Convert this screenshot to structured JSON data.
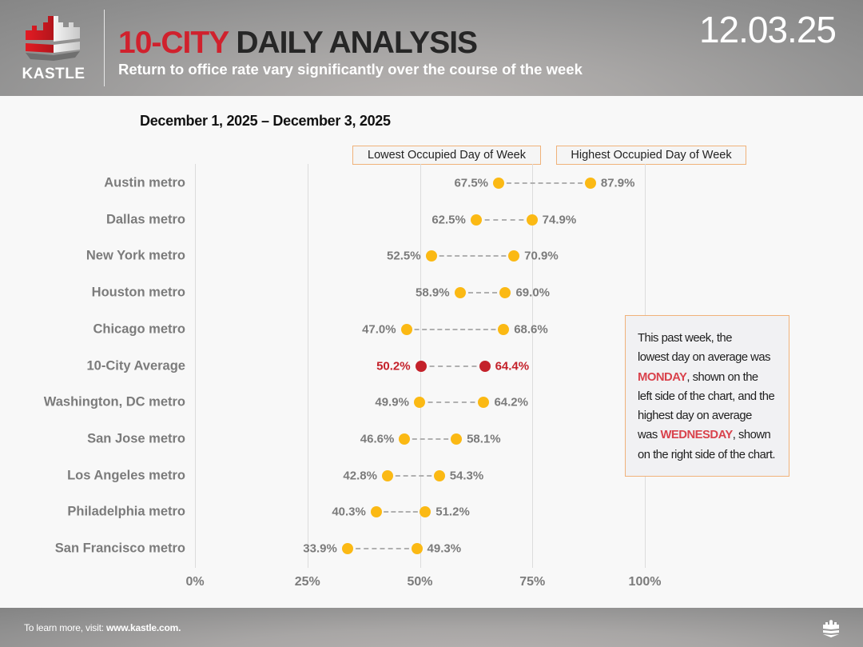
{
  "header": {
    "logo_text": "KASTLE",
    "title_accent": "10-CITY",
    "title_rest": "DAILY ANALYSIS",
    "subtitle": "Return to office rate vary significantly over the course of the week",
    "date_stamp": "12.03.25"
  },
  "date_range": "December 1, 2025 – December 3, 2025",
  "legend": {
    "low_label": "Lowest Occupied Day of Week",
    "high_label": "Highest Occupied Day of Week"
  },
  "callout": {
    "line1": "This past week, the",
    "line2": "lowest day on average was",
    "low_day": "MONDAY",
    "line3_rest": ", shown on the",
    "line4": "left side of the chart, and the",
    "line5": "highest day on average",
    "line6_pre": "was ",
    "high_day": "WEDNESDAY",
    "line6_rest": ", shown",
    "line7": "on the right side of the chart."
  },
  "footer": {
    "prefix": "To learn more, visit: ",
    "link": "www.kastle.com."
  },
  "colors": {
    "accent_red": "#d0212d",
    "dot_yellow": "#fbb914",
    "dot_red": "#c4212a",
    "label_red": "#c4212a",
    "label_gray": "#7b7b7b",
    "callout_border": "#f0b27a"
  },
  "chart_data": {
    "type": "dumbbell",
    "title": "10-CITY DAILY ANALYSIS",
    "subtitle": "December 1, 2025 – December 3, 2025",
    "xlabel": "",
    "ylabel": "",
    "xlim": [
      0,
      100
    ],
    "x_ticks": [
      "0%",
      "25%",
      "50%",
      "75%",
      "100%"
    ],
    "grid": true,
    "legend": [
      "Lowest Occupied Day of Week",
      "Highest Occupied Day of Week"
    ],
    "categories": [
      "Austin metro",
      "Dallas metro",
      "New York metro",
      "Houston metro",
      "Chicago metro",
      "10-City Average",
      "Washington, DC metro",
      "San Jose metro",
      "Los Angeles metro",
      "Philadelphia metro",
      "San Francisco metro"
    ],
    "series": [
      {
        "name": "Lowest Occupied Day of Week",
        "values": [
          67.5,
          62.5,
          52.5,
          58.9,
          47.0,
          50.2,
          49.9,
          46.6,
          42.8,
          40.3,
          33.9
        ]
      },
      {
        "name": "Highest Occupied Day of Week",
        "values": [
          87.9,
          74.9,
          70.9,
          69.0,
          68.6,
          64.4,
          64.2,
          58.1,
          54.3,
          51.2,
          49.3
        ]
      }
    ],
    "value_labels_low": [
      "67.5%",
      "62.5%",
      "52.5%",
      "58.9%",
      "47.0%",
      "50.2%",
      "49.9%",
      "46.6%",
      "42.8%",
      "40.3%",
      "33.9%"
    ],
    "value_labels_high": [
      "87.9%",
      "74.9%",
      "70.9%",
      "69.0%",
      "68.6%",
      "64.4%",
      "64.2%",
      "58.1%",
      "54.3%",
      "51.2%",
      "49.3%"
    ],
    "highlight_index": 5,
    "annotation": "This past week, the lowest day on average was MONDAY, shown on the left side of the chart, and the highest day on average was WEDNESDAY, shown on the right side of the chart."
  }
}
